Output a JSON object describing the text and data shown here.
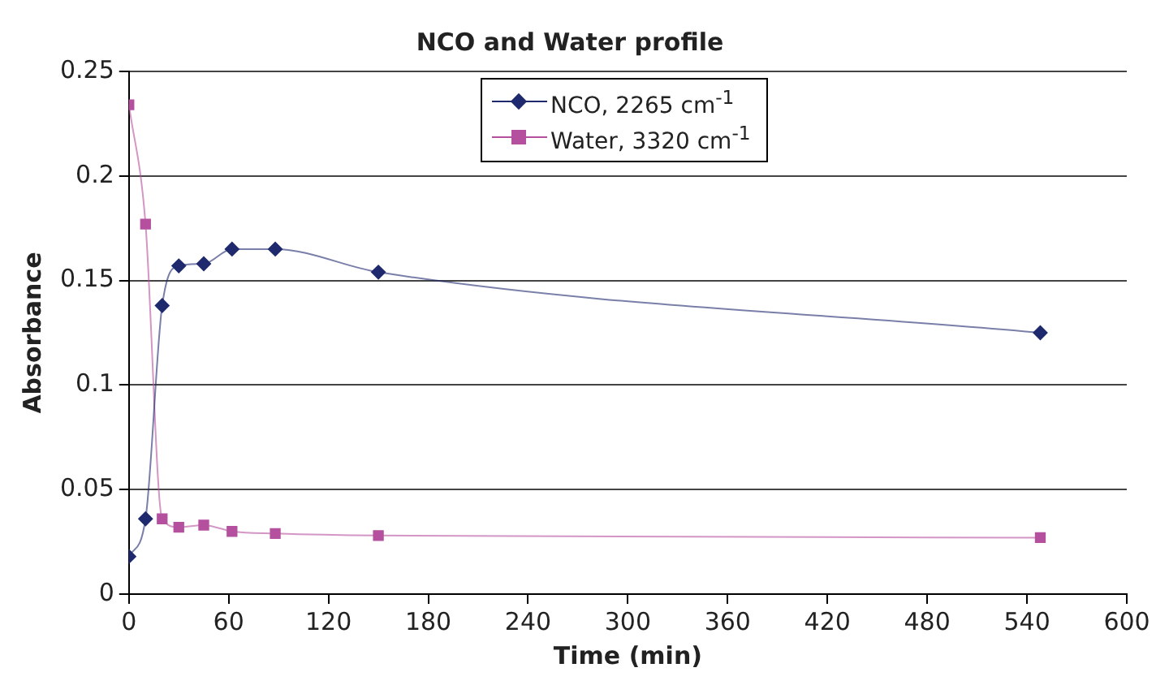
{
  "chart_data": {
    "type": "line",
    "title": "NCO and Water profile",
    "xlabel": "Time (min)",
    "ylabel": "Absorbance",
    "xlim": [
      0,
      600
    ],
    "xticks": [
      0,
      60,
      120,
      180,
      240,
      300,
      360,
      420,
      480,
      540,
      600
    ],
    "ylim": [
      0,
      0.25
    ],
    "yticks": [
      0,
      0.05,
      0.1,
      0.15,
      0.2,
      0.25
    ],
    "grid": "y",
    "legend": "top",
    "series": [
      {
        "name": "NCO, 2265 cm$^{-1}$",
        "color": "#1f2a6e",
        "marker": "diamond",
        "x": [
          0,
          10,
          20,
          30,
          45,
          62,
          88,
          150,
          548
        ],
        "values": [
          0.018,
          0.036,
          0.138,
          0.157,
          0.158,
          0.165,
          0.165,
          0.154,
          0.125
        ]
      },
      {
        "name": "Water, 3320 cm$^{-1}$",
        "color": "#b5509f",
        "marker": "square",
        "x": [
          0,
          10,
          20,
          30,
          45,
          62,
          88,
          150,
          548
        ],
        "values": [
          0.234,
          0.177,
          0.036,
          0.032,
          0.033,
          0.03,
          0.029,
          0.028,
          0.027
        ]
      }
    ]
  }
}
